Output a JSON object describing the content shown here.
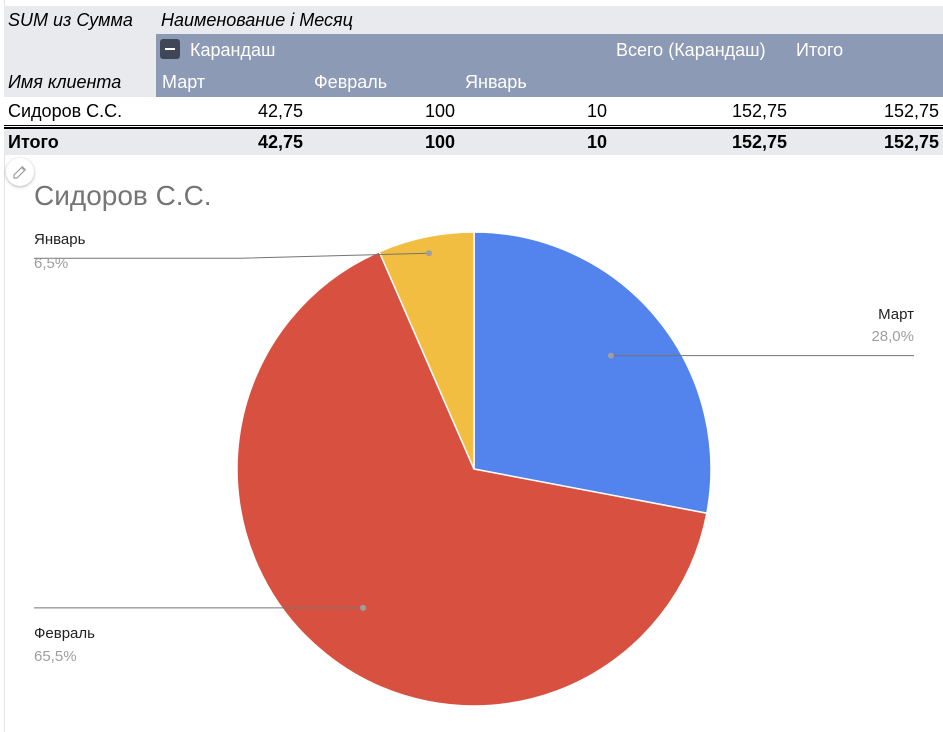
{
  "pivot": {
    "corner_label": "SUM из Сумма",
    "column_fields_label": "Наименование і Месяц",
    "category": "Карандаш",
    "category_total_label": "Всего (Карандаш)",
    "grand_total_label": "Итого",
    "row_field_label": "Имя клиента",
    "months": [
      "Март",
      "Февраль",
      "Январь"
    ],
    "rows": [
      {
        "client": "Сидоров С.С.",
        "values": [
          "42,75",
          "100",
          "10"
        ],
        "category_total": "152,75",
        "grand_total": "152,75"
      }
    ],
    "totals": {
      "label": "Итого",
      "values": [
        "42,75",
        "100",
        "10"
      ],
      "category_total": "152,75",
      "grand_total": "152,75"
    }
  },
  "chart_data": {
    "type": "pie",
    "title": "Сидоров С.С.",
    "slices": [
      {
        "label": "Март",
        "value": 42.75,
        "percent_label": "28,0%",
        "color": "#5383ec"
      },
      {
        "label": "Февраль",
        "value": 100,
        "percent_label": "65,5%",
        "color": "#d85140"
      },
      {
        "label": "Январь",
        "value": 10,
        "percent_label": "6,5%",
        "color": "#f1be42"
      }
    ]
  },
  "colors": {
    "header_band": "#8d9ab6",
    "light_band": "#e8eaed"
  },
  "icons": {
    "edit": "pencil-icon",
    "collapse": "minus-icon"
  }
}
